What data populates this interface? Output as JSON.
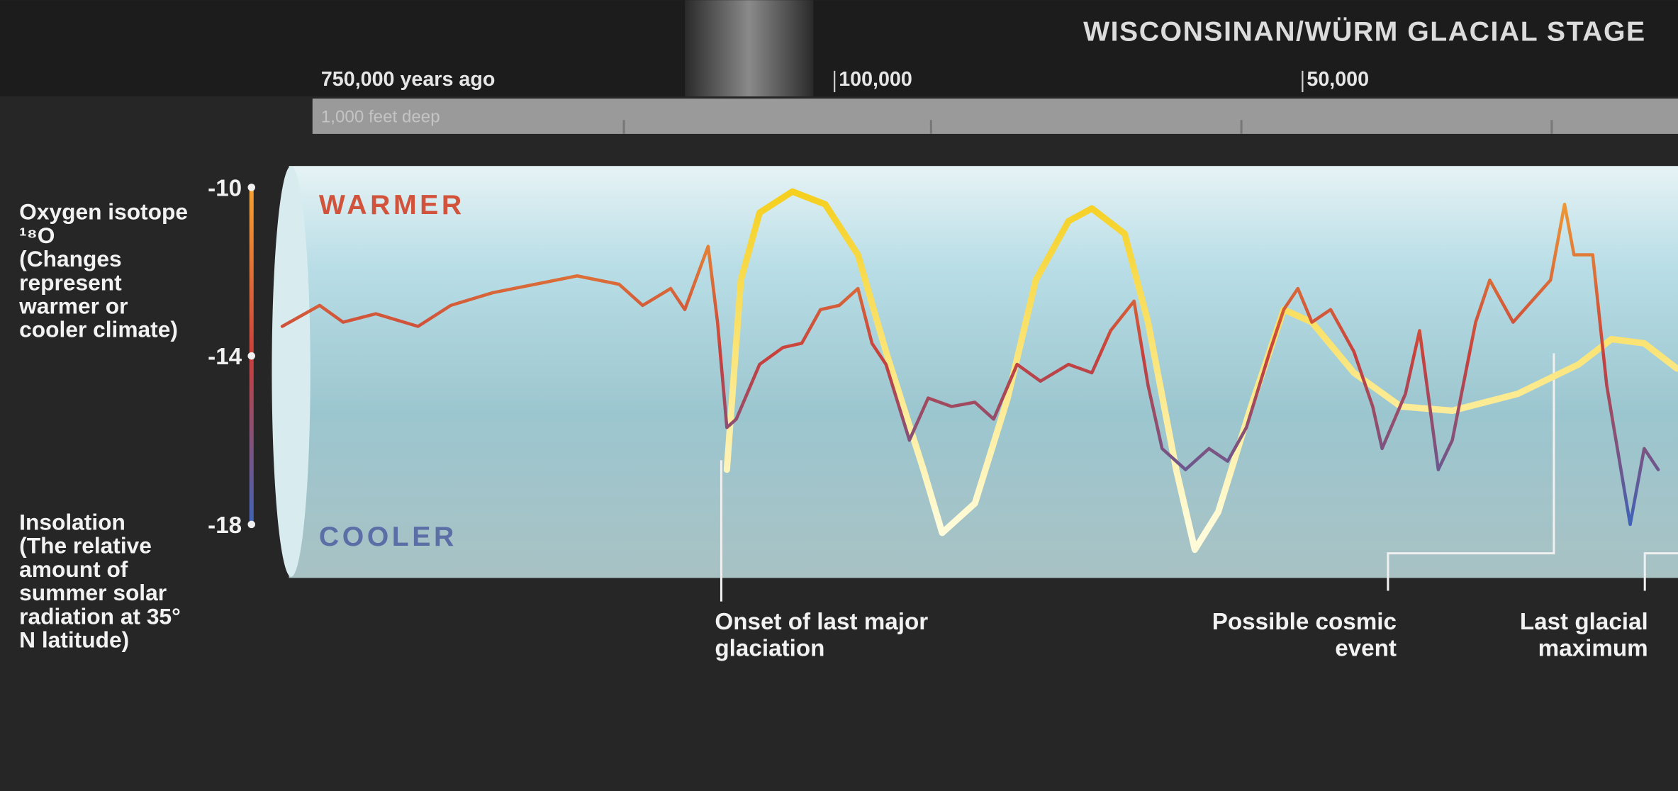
{
  "chart_data": {
    "type": "line",
    "title": "WISCONSINAN/WÜRM GLACIAL STAGE",
    "core_labels": [
      "750,000 years ago",
      "1,000 feet deep"
    ],
    "warm_label": "WARMER",
    "cool_label": "COOLER",
    "xlim": [
      160000,
      10000
    ],
    "xticks": [
      {
        "value": 100000,
        "label": "100,000"
      },
      {
        "value": 50000,
        "label": "50,000"
      }
    ],
    "ylim": [
      -18,
      -10
    ],
    "yticks": [
      -10,
      -14,
      -18
    ],
    "series": [
      {
        "name": "Oxygen isotope ¹⁸O",
        "description": "(Changes represent warmer or cooler climate)",
        "colors": [
          "#f2a233",
          "#c8403c",
          "#3f63b8"
        ],
        "x": [
          159000,
          155000,
          152500,
          149000,
          144500,
          141000,
          136500,
          132000,
          127500,
          123000,
          120500,
          117500,
          116000,
          113500,
          112500,
          111500,
          110500,
          108000,
          105500,
          103500,
          101500,
          99500,
          97500,
          96000,
          94500,
          92000,
          90000,
          87500,
          85000,
          83000,
          80500,
          78000,
          75000,
          72500,
          70500,
          68000,
          66500,
          65000,
          62500,
          60000,
          58000,
          56000,
          53500,
          52000,
          50500,
          49000,
          47000,
          44500,
          42500,
          41500,
          39000,
          37500,
          35500,
          34000,
          31500,
          30000,
          27500,
          25500,
          23500,
          22000,
          21000,
          19000,
          17500,
          15000,
          13500,
          12000
        ],
        "values": [
          -13.3,
          -12.8,
          -13.2,
          -13.0,
          -13.3,
          -12.8,
          -12.5,
          -12.3,
          -12.1,
          -12.3,
          -12.8,
          -12.4,
          -12.9,
          -11.4,
          -13.2,
          -15.7,
          -15.5,
          -14.2,
          -13.8,
          -13.7,
          -12.9,
          -12.8,
          -12.4,
          -13.7,
          -14.2,
          -16.0,
          -15.0,
          -15.2,
          -15.1,
          -15.5,
          -14.2,
          -14.6,
          -14.2,
          -14.4,
          -13.4,
          -12.7,
          -14.7,
          -16.2,
          -16.7,
          -16.2,
          -16.5,
          -15.7,
          -13.9,
          -12.9,
          -12.4,
          -13.2,
          -12.9,
          -13.9,
          -15.2,
          -16.2,
          -14.9,
          -13.4,
          -16.7,
          -16.0,
          -13.2,
          -12.2,
          -13.2,
          -12.7,
          -12.2,
          -10.4,
          -11.6,
          -11.6,
          -14.7,
          -18.0,
          -16.2,
          -16.7
        ]
      },
      {
        "name": "Insolation",
        "description": "(The relative amount of summer solar radiation at 35° N latitude)",
        "colors": [
          "#f5cf1c",
          "#fffbd8"
        ],
        "x": [
          111500,
          110000,
          108000,
          104500,
          101000,
          97500,
          94500,
          90500,
          88500,
          85000,
          81500,
          78500,
          75000,
          72500,
          69000,
          66500,
          63500,
          61500,
          59000,
          55500,
          52000,
          49000,
          44500,
          39500,
          34000,
          27000,
          20500,
          17000,
          13500,
          10000
        ],
        "values": [
          -16.7,
          -12.2,
          -10.6,
          -10.1,
          -10.4,
          -11.6,
          -13.9,
          -16.7,
          -18.2,
          -17.5,
          -15.0,
          -12.2,
          -10.8,
          -10.5,
          -11.1,
          -13.2,
          -16.7,
          -18.6,
          -17.7,
          -15.2,
          -12.9,
          -13.2,
          -14.4,
          -15.2,
          -15.3,
          -14.9,
          -14.2,
          -13.6,
          -13.7,
          -14.3
        ]
      }
    ],
    "annotations": [
      "Onset of last major glaciation",
      "Possible cosmic event",
      "Last glacial maximum"
    ]
  }
}
